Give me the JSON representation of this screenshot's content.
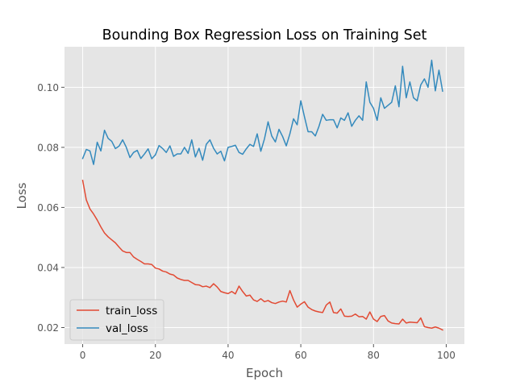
{
  "chart_data": {
    "type": "line",
    "title": "Bounding Box Regression Loss on Training Set",
    "xlabel": "Epoch",
    "ylabel": "Loss",
    "xlim": [
      -5,
      105
    ],
    "ylim": [
      0.0145,
      0.1135
    ],
    "xticks": [
      0,
      20,
      40,
      60,
      80,
      100
    ],
    "yticks": [
      0.02,
      0.04,
      0.06,
      0.08,
      0.1
    ],
    "ytick_labels": [
      "0.02",
      "0.04",
      "0.06",
      "0.08",
      "0.10"
    ],
    "grid": true,
    "style": "ggplot",
    "legend_position": "lower-left",
    "series": [
      {
        "name": "train_loss",
        "color": "#E24A33",
        "x": [
          0,
          1,
          2,
          3,
          4,
          5,
          6,
          7,
          8,
          9,
          10,
          11,
          12,
          13,
          14,
          15,
          16,
          17,
          18,
          19,
          20,
          21,
          22,
          23,
          24,
          25,
          26,
          27,
          28,
          29,
          30,
          31,
          32,
          33,
          34,
          35,
          36,
          37,
          38,
          39,
          40,
          41,
          42,
          43,
          44,
          45,
          46,
          47,
          48,
          49,
          50,
          51,
          52,
          53,
          54,
          55,
          56,
          57,
          58,
          59,
          60,
          61,
          62,
          63,
          64,
          65,
          66,
          67,
          68,
          69,
          70,
          71,
          72,
          73,
          74,
          75,
          76,
          77,
          78,
          79,
          80,
          81,
          82,
          83,
          84,
          85,
          86,
          87,
          88,
          89,
          90,
          91,
          92,
          93,
          94,
          95,
          96,
          97,
          98,
          99
        ],
        "values": [
          0.069,
          0.0625,
          0.0595,
          0.0578,
          0.0558,
          0.0535,
          0.0515,
          0.0502,
          0.0492,
          0.0482,
          0.0468,
          0.0455,
          0.045,
          0.045,
          0.0435,
          0.0427,
          0.042,
          0.0412,
          0.0412,
          0.041,
          0.0398,
          0.0395,
          0.0388,
          0.0385,
          0.0378,
          0.0375,
          0.0365,
          0.036,
          0.0357,
          0.0357,
          0.035,
          0.0343,
          0.0342,
          0.0336,
          0.0338,
          0.0333,
          0.0346,
          0.0335,
          0.032,
          0.0316,
          0.0313,
          0.032,
          0.0312,
          0.0338,
          0.032,
          0.0305,
          0.0308,
          0.0292,
          0.0287,
          0.0296,
          0.0286,
          0.029,
          0.0283,
          0.028,
          0.0285,
          0.0288,
          0.0285,
          0.0323,
          0.0292,
          0.0268,
          0.0278,
          0.0286,
          0.0268,
          0.026,
          0.0255,
          0.0252,
          0.025,
          0.0275,
          0.0285,
          0.025,
          0.0248,
          0.0262,
          0.0238,
          0.0237,
          0.0238,
          0.0245,
          0.0236,
          0.0237,
          0.0228,
          0.0252,
          0.0228,
          0.022,
          0.0237,
          0.024,
          0.0222,
          0.0215,
          0.0213,
          0.0212,
          0.0228,
          0.0215,
          0.0218,
          0.0217,
          0.0216,
          0.0232,
          0.0203,
          0.02,
          0.0198,
          0.0202,
          0.0198,
          0.0192
        ]
      },
      {
        "name": "val_loss",
        "color": "#348ABD",
        "x": [
          0,
          1,
          2,
          3,
          4,
          5,
          6,
          7,
          8,
          9,
          10,
          11,
          12,
          13,
          14,
          15,
          16,
          17,
          18,
          19,
          20,
          21,
          22,
          23,
          24,
          25,
          26,
          27,
          28,
          29,
          30,
          31,
          32,
          33,
          34,
          35,
          36,
          37,
          38,
          39,
          40,
          41,
          42,
          43,
          44,
          45,
          46,
          47,
          48,
          49,
          50,
          51,
          52,
          53,
          54,
          55,
          56,
          57,
          58,
          59,
          60,
          61,
          62,
          63,
          64,
          65,
          66,
          67,
          68,
          69,
          70,
          71,
          72,
          73,
          74,
          75,
          76,
          77,
          78,
          79,
          80,
          81,
          82,
          83,
          84,
          85,
          86,
          87,
          88,
          89,
          90,
          91,
          92,
          93,
          94,
          95,
          96,
          97,
          98,
          99
        ],
        "values": [
          0.0763,
          0.0793,
          0.0788,
          0.0743,
          0.0817,
          0.0788,
          0.0857,
          0.083,
          0.082,
          0.0796,
          0.0804,
          0.0825,
          0.08,
          0.0766,
          0.0783,
          0.079,
          0.0763,
          0.0778,
          0.0795,
          0.0762,
          0.0775,
          0.0806,
          0.0796,
          0.0783,
          0.0805,
          0.077,
          0.0778,
          0.0778,
          0.08,
          0.078,
          0.0825,
          0.0768,
          0.0797,
          0.0757,
          0.081,
          0.0825,
          0.0797,
          0.0778,
          0.0787,
          0.0755,
          0.08,
          0.0803,
          0.0807,
          0.0783,
          0.0777,
          0.0795,
          0.081,
          0.0803,
          0.0845,
          0.0787,
          0.0828,
          0.0885,
          0.0838,
          0.0818,
          0.086,
          0.0836,
          0.0805,
          0.0845,
          0.0895,
          0.0875,
          0.0955,
          0.0902,
          0.0852,
          0.0852,
          0.0838,
          0.087,
          0.091,
          0.089,
          0.0892,
          0.0892,
          0.0865,
          0.0898,
          0.089,
          0.0915,
          0.087,
          0.089,
          0.0905,
          0.089,
          0.1018,
          0.095,
          0.093,
          0.089,
          0.0965,
          0.093,
          0.094,
          0.095,
          0.1005,
          0.0935,
          0.107,
          0.0965,
          0.1018,
          0.0965,
          0.0955,
          0.1008,
          0.1028,
          0.1,
          0.109,
          0.0988,
          0.1057,
          0.0987
        ]
      }
    ]
  }
}
